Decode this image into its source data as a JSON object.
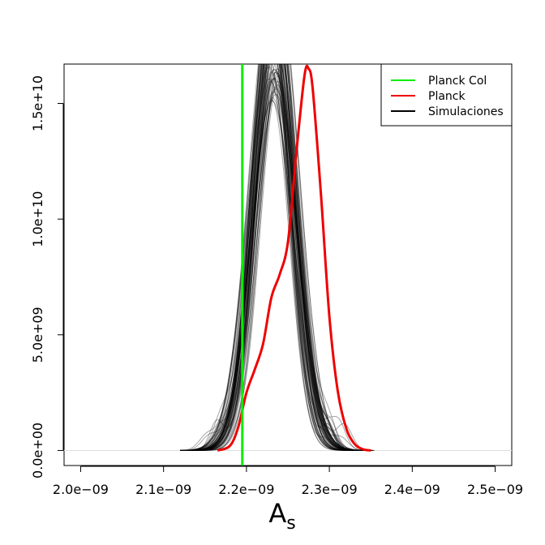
{
  "chart_data": {
    "type": "line",
    "title": "",
    "xlabel": "A",
    "xlabel_subscript": "s",
    "ylabel": "",
    "xlim": [
      1.98e-09,
      2.52e-09
    ],
    "ylim": [
      -650000000.0,
      16700000000.0
    ],
    "x_ticks": [
      2e-09,
      2.1e-09,
      2.2e-09,
      2.3e-09,
      2.4e-09,
      2.5e-09
    ],
    "x_tick_labels": [
      "2.0e−09",
      "2.1e−09",
      "2.2e−09",
      "2.3e−09",
      "2.4e−09",
      "2.5e−09"
    ],
    "y_ticks": [
      0,
      5000000000.0,
      10000000000.0,
      15000000000.0
    ],
    "y_tick_labels": [
      "0.0e+00",
      "5.0e+09",
      "1.0e+10",
      "1.5e+10"
    ],
    "grid": false,
    "legend_position": "top-right",
    "vline": {
      "x": 2.195e-09,
      "series": "Planck Col"
    },
    "series": [
      {
        "name": "Planck Col",
        "color": "#00ee00",
        "kind": "vertical-line"
      },
      {
        "name": "Planck",
        "color": "#ee0000",
        "x": [
          2.165e-09,
          2.18e-09,
          2.19e-09,
          2.2e-09,
          2.21e-09,
          2.22e-09,
          2.23e-09,
          2.24e-09,
          2.25e-09,
          2.26e-09,
          2.27e-09,
          2.275e-09,
          2.28e-09,
          2.29e-09,
          2.3e-09,
          2.31e-09,
          2.32e-09,
          2.33e-09,
          2.34e-09,
          2.35e-09
        ],
        "y": [
          0,
          200000000.0,
          1000000000.0,
          2500000000.0,
          3500000000.0,
          4600000000.0,
          6600000000.0,
          7600000000.0,
          9000000000.0,
          12800000000.0,
          16200000000.0,
          16500000000.0,
          15600000000.0,
          11000000000.0,
          5800000000.0,
          2600000000.0,
          1000000000.0,
          300000000.0,
          60000000.0,
          0
        ]
      },
      {
        "name": "Simulaciones",
        "color": "#000000",
        "kind": "band",
        "mean": 2.233e-09,
        "sd": 2.37e-11,
        "peak": 16800000000.0,
        "count": 70
      }
    ],
    "legend": [
      {
        "label": "Planck Col",
        "color": "#00ee00"
      },
      {
        "label": "Planck",
        "color": "#ee0000"
      },
      {
        "label": "Simulaciones",
        "color": "#000000"
      }
    ]
  }
}
